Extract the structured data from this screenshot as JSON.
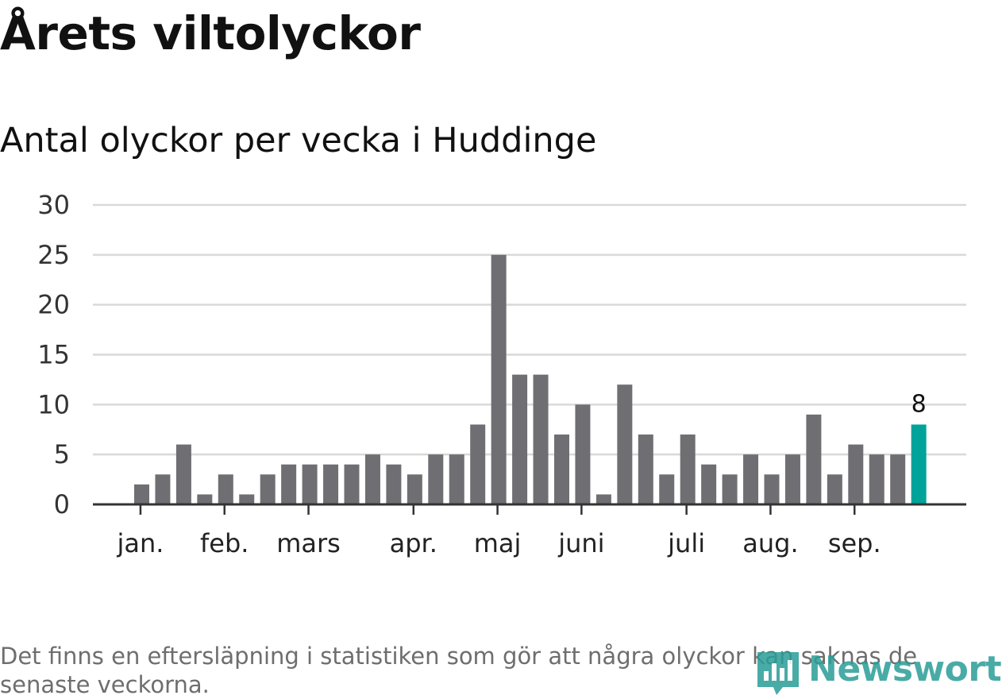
{
  "title": "Årets viltolyckor",
  "subtitle": "Antal olyckor per vecka i Huddinge",
  "footnote": "Det finns en eftersläpning i statistiken som gör att några olyckor kan saknas de senaste veckorna.",
  "brand": {
    "name": "Newsworthy",
    "logo_icon": "newsworthy-logo-icon"
  },
  "colors": {
    "bar": "#6f6e73",
    "highlight": "#00a39a",
    "grid": "#d9d9d9",
    "axis": "#333333"
  },
  "chart_data": {
    "type": "bar",
    "title": "Antal olyckor per vecka i Huddinge",
    "ylim": [
      0,
      30
    ],
    "yticks": [
      0,
      5,
      10,
      15,
      20,
      25,
      30
    ],
    "grid": true,
    "values": [
      2,
      3,
      6,
      1,
      3,
      1,
      3,
      4,
      4,
      4,
      4,
      5,
      4,
      3,
      5,
      5,
      8,
      25,
      13,
      13,
      7,
      10,
      1,
      12,
      7,
      3,
      7,
      4,
      3,
      5,
      3,
      5,
      9,
      3,
      6,
      5,
      5,
      8
    ],
    "highlight_index": 37,
    "highlight_label": "8",
    "month_labels": [
      {
        "label": "jan.",
        "bar_index": 0.3
      },
      {
        "label": "feb.",
        "bar_index": 4.3
      },
      {
        "label": "mars",
        "bar_index": 8.3
      },
      {
        "label": "apr.",
        "bar_index": 13.3
      },
      {
        "label": "maj",
        "bar_index": 17.3
      },
      {
        "label": "juni",
        "bar_index": 21.3
      },
      {
        "label": "juli",
        "bar_index": 26.3
      },
      {
        "label": "aug.",
        "bar_index": 30.3
      },
      {
        "label": "sep.",
        "bar_index": 34.3
      }
    ]
  }
}
